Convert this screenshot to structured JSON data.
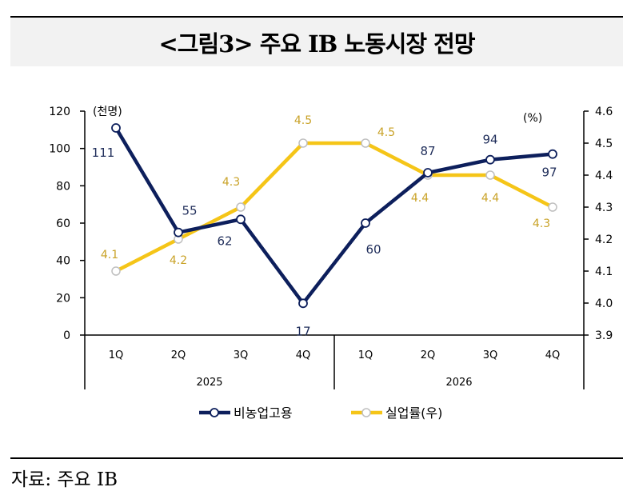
{
  "title": "<그림3> 주요 IB 노동시장 전망",
  "source": "자료: 주요 IB",
  "colors": {
    "employment": "#0d1f5c",
    "unemployment": "#f5c518",
    "unemployment_label": "#c9a227",
    "employment_label": "#1f2d5a"
  },
  "chart_data": {
    "type": "line",
    "title": "<그림3> 주요 IB 노동시장 전망",
    "categories": [
      "1Q",
      "2Q",
      "3Q",
      "4Q",
      "1Q",
      "2Q",
      "3Q",
      "4Q"
    ],
    "category_groups": [
      {
        "label": "2025",
        "span": 4
      },
      {
        "label": "2026",
        "span": 4
      }
    ],
    "series": [
      {
        "name": "비농업고용",
        "axis": "left",
        "values": [
          111,
          55,
          62,
          17,
          60,
          87,
          94,
          97
        ],
        "labels": [
          "111",
          "55",
          "62",
          "17",
          "60",
          "87",
          "94",
          "97"
        ]
      },
      {
        "name": "실업률(우)",
        "axis": "right",
        "values": [
          4.1,
          4.2,
          4.3,
          4.5,
          4.5,
          4.4,
          4.4,
          4.3
        ],
        "labels": [
          "4.1",
          "4.2",
          "4.3",
          "4.5",
          "4.5",
          "4.4",
          "4.4",
          "4.3"
        ]
      }
    ],
    "left_axis": {
      "unit": "(천명)",
      "ylim": [
        0,
        120
      ],
      "ticks": [
        "0",
        "20",
        "40",
        "60",
        "80",
        "100",
        "120"
      ]
    },
    "right_axis": {
      "unit": "(%)",
      "ylim": [
        3.9,
        4.6
      ],
      "ticks": [
        "3.9",
        "4.0",
        "4.1",
        "4.2",
        "4.3",
        "4.4",
        "4.5",
        "4.6"
      ]
    },
    "grid": false,
    "legend": {
      "position": "bottom",
      "entries": [
        "비농업고용",
        "실업률(우)"
      ]
    }
  }
}
